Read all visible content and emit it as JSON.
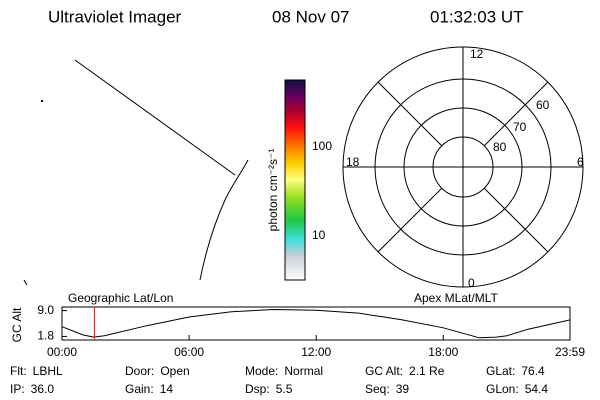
{
  "header": {
    "instrument": "Ultraviolet Imager",
    "date": "08 Nov 07",
    "time": "01:32:03 UT"
  },
  "colorbar": {
    "label": "photon cm⁻²s⁻¹",
    "ticks": [
      "100",
      "10"
    ]
  },
  "polar": {
    "mlt_labels": [
      "12",
      "18",
      "6",
      "0"
    ],
    "lat_labels": [
      "60",
      "70",
      "80"
    ]
  },
  "chart_data": {
    "type": "line",
    "ylabel": "GC Alt",
    "left_label": "Geographic Lat/Lon",
    "right_label": "Apex MLat/MLT",
    "x": [
      0,
      1,
      1.5,
      2,
      4,
      6,
      8,
      10,
      12,
      14,
      16,
      18,
      19.7,
      20.5,
      21,
      22,
      23.98
    ],
    "values": [
      4.5,
      2.2,
      1.6,
      2.0,
      4.8,
      7.2,
      8.7,
      9.3,
      9.1,
      8.3,
      6.5,
      4.2,
      1.4,
      1.6,
      2.0,
      3.8,
      6.4
    ],
    "color": "#000000",
    "cursor": 1.53,
    "cursor_color": "#cc2222",
    "xlim": [
      0,
      23.98
    ],
    "ylim": [
      0.8,
      10
    ],
    "xticks": [
      {
        "value": 0,
        "label": "00:00"
      },
      {
        "value": 6,
        "label": "06:00"
      },
      {
        "value": 12,
        "label": "12:00"
      },
      {
        "value": 18,
        "label": "18:00"
      },
      {
        "value": 23.98,
        "label": "23:59"
      }
    ],
    "yticks": [
      {
        "value": 9,
        "label": "9.0"
      },
      1.8
    ]
  },
  "info": {
    "rows": [
      [
        [
          "Flt:",
          "LBHL"
        ],
        [
          "Door:",
          "Open"
        ],
        [
          "Mode:",
          "Normal"
        ],
        [
          "GC Alt:",
          "2.1 Re"
        ],
        [
          "GLat:",
          "76.4"
        ]
      ],
      [
        [
          "IP:",
          "36.0"
        ],
        [
          "Gain:",
          "14"
        ],
        [
          "Dsp:",
          "5.5"
        ],
        [
          "Seq:",
          "39"
        ],
        [
          "GLon:",
          "54.4"
        ]
      ]
    ]
  }
}
